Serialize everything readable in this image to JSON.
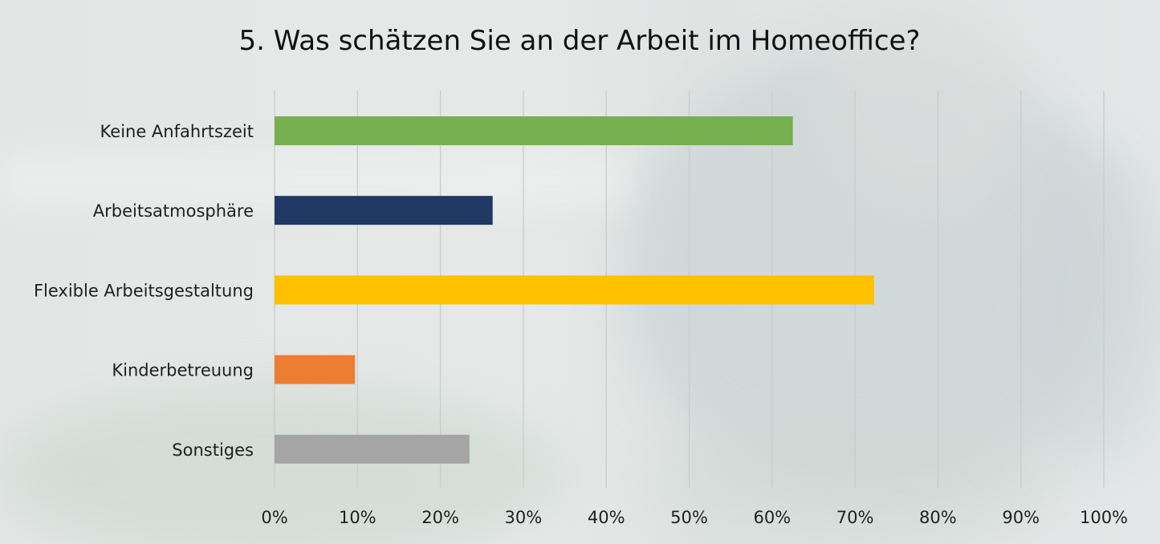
{
  "chart_data": {
    "type": "bar",
    "orientation": "horizontal",
    "title": "5. Was schätzen Sie an der Arbeit im Homeoffice?",
    "categories": [
      "Keine Anfahrtszeit",
      "Arbeitsatmosphäre",
      "Flexible Arbeitsgestaltung",
      "Kinderbetreuung",
      "Sonstiges"
    ],
    "values": [
      62.5,
      26.3,
      72.3,
      9.7,
      23.5
    ],
    "colors": [
      "#76b04f",
      "#1f3864",
      "#ffc000",
      "#ed7d31",
      "#a5a5a5"
    ],
    "xlim": [
      0,
      100
    ],
    "xticks": [
      0,
      10,
      20,
      30,
      40,
      50,
      60,
      70,
      80,
      90,
      100
    ],
    "tick_labels": [
      "0%",
      "10%",
      "20%",
      "30%",
      "40%",
      "50%",
      "60%",
      "70%",
      "80%",
      "90%",
      "100%"
    ],
    "grid": true,
    "legend": "none",
    "xlabel": "",
    "ylabel": ""
  }
}
